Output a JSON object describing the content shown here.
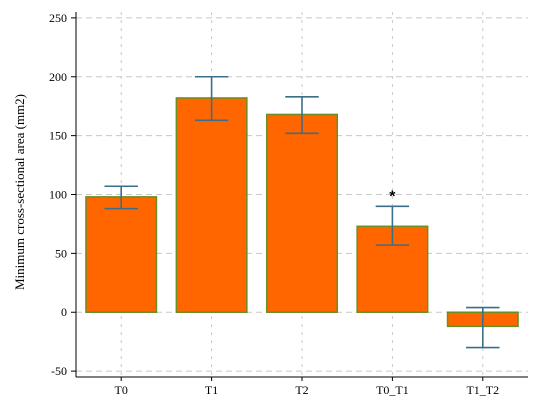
{
  "chart_data": {
    "type": "bar",
    "title": "",
    "xlabel": "",
    "ylabel": "Minimum cross-sectional area (mm2)",
    "categories": [
      "T0",
      "T1",
      "T2",
      "T0_T1",
      "T1_T2"
    ],
    "values": [
      98,
      182,
      168,
      73,
      -12
    ],
    "error_low": [
      88,
      163,
      152,
      57,
      -30
    ],
    "error_high": [
      107,
      200,
      183,
      90,
      4
    ],
    "annotations": [
      {
        "category": "T0_T1",
        "text": "*"
      }
    ],
    "yticks": [
      -50,
      0,
      50,
      100,
      150,
      200,
      250
    ],
    "ylim": [
      -55,
      255
    ],
    "grid": true,
    "colors": {
      "bar_fill": "#ff6600",
      "bar_edge": "#6b8e23",
      "error_bar": "#3a6e8a",
      "grid": "#c8c8c8"
    }
  }
}
